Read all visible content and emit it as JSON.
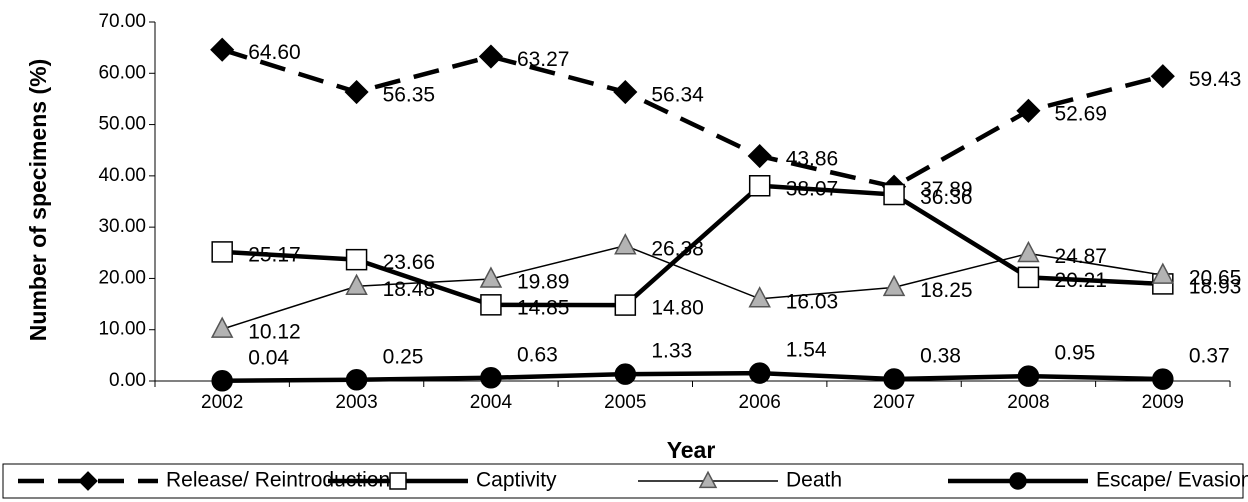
{
  "chart_data": {
    "type": "line",
    "x_label": "Year",
    "y_label": "Number of specimens (%)",
    "categories": [
      "2002",
      "2003",
      "2004",
      "2005",
      "2006",
      "2007",
      "2008",
      "2009"
    ],
    "ylim": [
      0,
      70
    ],
    "yticks": [
      {
        "value": 0,
        "label": "0.00"
      },
      {
        "value": 10,
        "label": "10.00"
      },
      {
        "value": 20,
        "label": "20.00"
      },
      {
        "value": 30,
        "label": "30.00"
      },
      {
        "value": 40,
        "label": "40.00"
      },
      {
        "value": 50,
        "label": "50.00"
      },
      {
        "value": 60,
        "label": "60.00"
      },
      {
        "value": 70,
        "label": "70.00"
      }
    ],
    "grid": false,
    "legend": "bottom",
    "series": [
      {
        "name": "Release/ Reintroduction",
        "color": "#000000",
        "marker": "diamond",
        "marker_color": "#000000",
        "dashed": true,
        "values": [
          64.6,
          56.35,
          63.27,
          56.34,
          43.86,
          37.89,
          52.69,
          59.43
        ],
        "value_labels": [
          "64.60",
          "56.35",
          "63.27",
          "56.34",
          "43.86",
          "37.89",
          "52.69",
          "59.43"
        ]
      },
      {
        "name": "Captivity",
        "color": "#000000",
        "marker": "square",
        "marker_color": "#ffffff",
        "dashed": false,
        "values": [
          25.17,
          23.66,
          14.85,
          14.8,
          38.07,
          36.36,
          20.21,
          18.93
        ],
        "value_labels": [
          "25.17",
          "23.66",
          "14.85",
          "14.80",
          "38.07",
          "36.36",
          "20.21",
          "18.93"
        ]
      },
      {
        "name": "Death",
        "color": "#000000",
        "marker": "triangle",
        "marker_color": "#b3b3b3",
        "dashed": false,
        "values": [
          10.12,
          18.48,
          19.89,
          26.38,
          16.03,
          18.25,
          24.87,
          20.65
        ],
        "value_labels": [
          "10.12",
          "18.48",
          "19.89",
          "26.38",
          "16.03",
          "18.25",
          "24.87",
          "20.65"
        ]
      },
      {
        "name": "Escape/ Evasion",
        "color": "#000000",
        "marker": "circle",
        "marker_color": "#000000",
        "dashed": false,
        "values": [
          0.04,
          0.25,
          0.63,
          1.33,
          1.54,
          0.38,
          0.95,
          0.37
        ],
        "value_labels": [
          "0.04",
          "0.25",
          "0.63",
          "1.33",
          "1.54",
          "0.38",
          "0.95",
          "0.37"
        ]
      }
    ]
  }
}
